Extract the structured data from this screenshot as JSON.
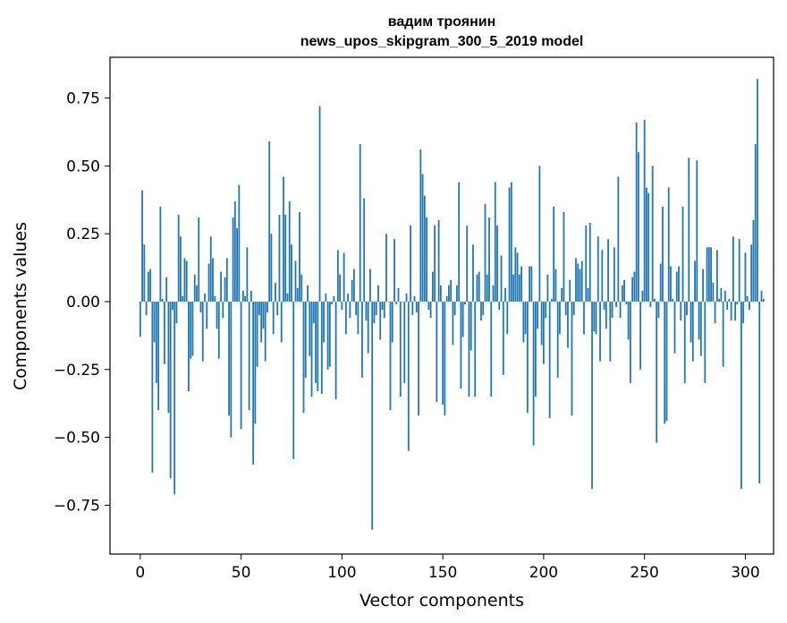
{
  "chart_data": {
    "type": "bar",
    "title_line1": "вадим троянин",
    "title_line2": "news_upos_skipgram_300_5_2019 model",
    "xlabel": "Vector components",
    "ylabel": "Components values",
    "xlim": [
      -15,
      314
    ],
    "ylim": [
      -0.93,
      0.9
    ],
    "x_ticks": [
      0,
      50,
      100,
      150,
      200,
      250,
      300
    ],
    "x_tick_labels": [
      "0",
      "50",
      "100",
      "150",
      "200",
      "250",
      "300"
    ],
    "y_ticks": [
      0.75,
      0.5,
      0.25,
      0.0,
      -0.25,
      -0.5,
      -0.75
    ],
    "y_tick_labels": [
      "0.75",
      "0.50",
      "0.25",
      "0.00",
      "−0.25",
      "−0.50",
      "−0.75"
    ],
    "bar_color": "#1f77b4",
    "series": [
      {
        "name": "components",
        "values": [
          -0.13,
          0.41,
          0.21,
          -0.05,
          0.11,
          0.12,
          -0.63,
          -0.15,
          -0.3,
          -0.4,
          0.35,
          0.01,
          -0.23,
          0.09,
          -0.41,
          -0.65,
          -0.03,
          -0.71,
          -0.08,
          0.32,
          0.24,
          0.02,
          0.16,
          0.15,
          -0.33,
          -0.21,
          -0.2,
          0.1,
          0.06,
          0.31,
          -0.04,
          -0.22,
          0.03,
          -0.1,
          0.14,
          0.24,
          0.16,
          0.02,
          -0.1,
          -0.21,
          0.11,
          -0.06,
          0.09,
          0.16,
          -0.42,
          -0.5,
          0.31,
          0.37,
          0.27,
          0.43,
          -0.47,
          0.04,
          0.02,
          0.2,
          -0.4,
          0.04,
          -0.6,
          -0.45,
          -0.24,
          -0.05,
          -0.15,
          -0.1,
          -0.22,
          -0.04,
          0.59,
          0.25,
          -0.12,
          0.07,
          -0.05,
          0.32,
          -0.15,
          0.46,
          0.32,
          0.03,
          0.37,
          0.21,
          -0.58,
          0.15,
          0.05,
          0.33,
          0.1,
          -0.41,
          -0.28,
          0.06,
          -0.2,
          -0.35,
          -0.08,
          -0.3,
          -0.33,
          0.72,
          -0.34,
          -0.15,
          0.03,
          -0.25,
          -0.24,
          -0.01,
          0.02,
          -0.36,
          0.19,
          0.1,
          -0.03,
          0.18,
          -0.12,
          0.03,
          -0.06,
          0.08,
          0.12,
          -0.05,
          -0.12,
          0.58,
          -0.28,
          0.38,
          -0.07,
          -0.19,
          0.12,
          -0.84,
          -0.08,
          -0.05,
          0.06,
          -0.14,
          -0.03,
          -0.06,
          0.25,
          0.0,
          -0.4,
          -0.15,
          0.23,
          -0.01,
          0.05,
          -0.35,
          0.0,
          -0.3,
          0.03,
          -0.55,
          0.28,
          -0.05,
          0.02,
          -0.04,
          -0.42,
          0.56,
          0.47,
          0.39,
          0.31,
          -0.03,
          -0.06,
          0.11,
          0.28,
          -0.37,
          0.3,
          0.06,
          -0.38,
          -0.42,
          0.02,
          0.06,
          0.08,
          -0.16,
          -0.05,
          0.06,
          0.44,
          -0.32,
          -0.13,
          -0.01,
          0.28,
          -0.35,
          -0.18,
          0.21,
          -0.35,
          0.1,
          0.11,
          -0.07,
          -0.05,
          0.36,
          0.1,
          0.31,
          -0.35,
          0.06,
          0.44,
          0.28,
          -0.03,
          0.17,
          -0.27,
          0.05,
          -0.12,
          0.42,
          0.44,
          0.1,
          0.2,
          0.18,
          0.1,
          0.13,
          -0.15,
          -0.12,
          -0.41,
          0.13,
          0.13,
          -0.53,
          -0.35,
          -0.1,
          0.5,
          -0.16,
          -0.23,
          -0.06,
          0.1,
          -0.43,
          0.01,
          0.35,
          0.12,
          -0.28,
          -0.12,
          0.05,
          0.33,
          -0.05,
          -0.17,
          0.08,
          -0.42,
          -0.05,
          0.16,
          0.14,
          0.12,
          0.15,
          -0.12,
          0.28,
          0.05,
          0.29,
          -0.69,
          -0.11,
          -0.12,
          0.24,
          -0.22,
          0.19,
          -0.03,
          -0.1,
          0.23,
          -0.22,
          -0.06,
          0.2,
          -0.02,
          0.46,
          -0.06,
          0.06,
          0.08,
          -0.01,
          -0.14,
          -0.3,
          0.09,
          0.11,
          0.66,
          0.55,
          -0.25,
          0.04,
          0.67,
          0.42,
          0.4,
          -0.02,
          0.5,
          0.01,
          -0.52,
          -0.06,
          0.14,
          0.35,
          -0.45,
          -0.44,
          0.42,
          0.13,
          0.01,
          -0.19,
          0.11,
          0.13,
          -0.07,
          0.35,
          -0.3,
          -0.05,
          0.53,
          -0.15,
          -0.22,
          0.15,
          0.52,
          -0.14,
          -0.2,
          0.12,
          -0.3,
          0.2,
          0.2,
          0.2,
          0.07,
          -0.08,
          0.19,
          0.01,
          0.05,
          -0.24,
          0.04,
          -0.03,
          0.01,
          -0.07,
          0.24,
          -0.07,
          -0.01,
          0.23,
          -0.69,
          -0.08,
          0.18,
          0.02,
          -0.03,
          0.21,
          0.3,
          0.58,
          0.82,
          -0.67,
          0.04,
          0.01
        ]
      }
    ]
  }
}
